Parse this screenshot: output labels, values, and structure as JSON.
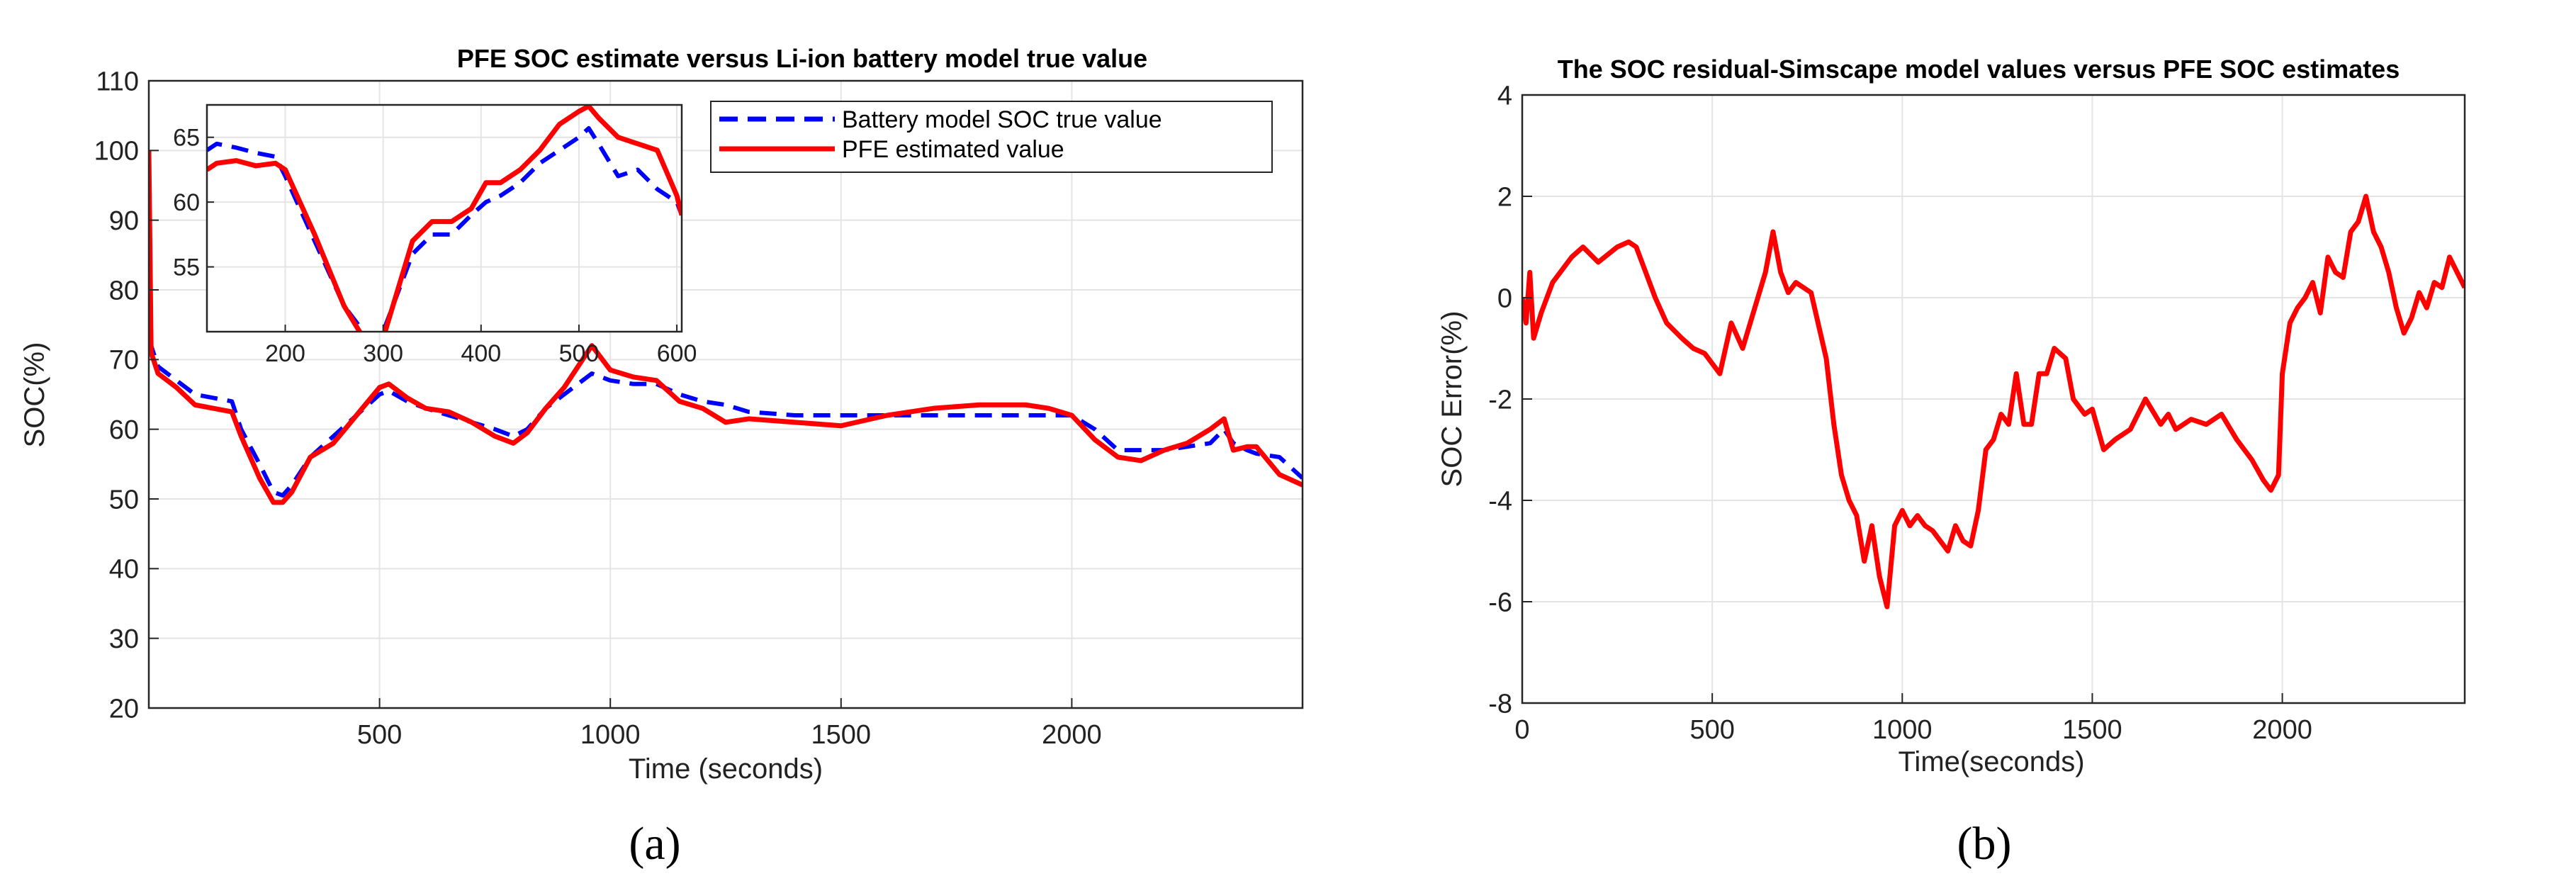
{
  "chart_data": [
    {
      "type": "line",
      "panel_label": "(a)",
      "title": "PFE SOC estimate versus Li-ion battery model true value",
      "xlabel": "Time (seconds)",
      "ylabel": "SOC(%)",
      "xlim": [
        0,
        2500
      ],
      "ylim": [
        20,
        110
      ],
      "xticks": [
        500,
        1000,
        1500,
        2000
      ],
      "yticks": [
        20,
        30,
        40,
        50,
        60,
        70,
        80,
        90,
        100,
        110
      ],
      "grid": true,
      "legend_position": "top-right",
      "series": [
        {
          "name": "Battery model SOC true value",
          "color": "#0000ff",
          "style": "dashed",
          "x": [
            0,
            5,
            20,
            60,
            100,
            140,
            180,
            200,
            240,
            270,
            290,
            310,
            350,
            400,
            450,
            500,
            520,
            560,
            600,
            650,
            700,
            750,
            790,
            820,
            860,
            900,
            940,
            960,
            1000,
            1050,
            1100,
            1150,
            1200,
            1250,
            1300,
            1400,
            1500,
            1600,
            1700,
            1800,
            1900,
            1950,
            2000,
            2050,
            2100,
            2150,
            2200,
            2250,
            2300,
            2330,
            2350,
            2380,
            2400,
            2450,
            2500
          ],
          "y": [
            100,
            72,
            69,
            67,
            65,
            64.5,
            64,
            60,
            55,
            51,
            50.5,
            52,
            56,
            59,
            62,
            65,
            65.5,
            64,
            63,
            62,
            61,
            60,
            59,
            60,
            63,
            65,
            67,
            68,
            67,
            66.5,
            66.5,
            65,
            64,
            63.5,
            62.5,
            62,
            62,
            62,
            62,
            62,
            62,
            62,
            62,
            60,
            57,
            57,
            57,
            57.5,
            58,
            60,
            58,
            57,
            56.5,
            56,
            53
          ]
        },
        {
          "name": "PFE estimated value",
          "color": "#ff0000",
          "style": "solid",
          "x": [
            0,
            5,
            20,
            60,
            100,
            140,
            180,
            200,
            240,
            270,
            290,
            310,
            350,
            400,
            450,
            500,
            520,
            560,
            600,
            650,
            700,
            750,
            790,
            820,
            860,
            900,
            940,
            960,
            1000,
            1050,
            1100,
            1150,
            1200,
            1250,
            1300,
            1400,
            1500,
            1600,
            1700,
            1800,
            1900,
            1950,
            2000,
            2050,
            2100,
            2150,
            2200,
            2250,
            2300,
            2330,
            2350,
            2380,
            2400,
            2450,
            2500
          ],
          "y": [
            100,
            71,
            68,
            66,
            63.5,
            63,
            62.5,
            59,
            53,
            49.5,
            49.5,
            51,
            56,
            58,
            62,
            66,
            66.5,
            64.5,
            63,
            62.5,
            61,
            59,
            58,
            59.5,
            63,
            66,
            70,
            72,
            68.5,
            67.5,
            67,
            64,
            63,
            61,
            61.5,
            61,
            60.5,
            62,
            63,
            63.5,
            63.5,
            63,
            62,
            58.5,
            56,
            55.5,
            57,
            58,
            60,
            61.5,
            57,
            57.5,
            57.5,
            53.5,
            52
          ]
        }
      ],
      "inset": {
        "xlim": [
          120,
          605
        ],
        "ylim": [
          50,
          67.5
        ],
        "xticks": [
          200,
          300,
          400,
          500,
          600
        ],
        "yticks": [
          55,
          60,
          65
        ],
        "series": [
          {
            "name": "Battery model SOC true value",
            "x": [
              120,
              130,
              150,
              170,
              190,
              200,
              230,
              260,
              285,
              300,
              310,
              330,
              350,
              370,
              390,
              405,
              420,
              440,
              460,
              480,
              500,
              510,
              520,
              540,
              560,
              580,
              600,
              605
            ],
            "y": [
              64,
              64.5,
              64.2,
              63.8,
              63.5,
              62,
              57,
              52,
              49.5,
              50,
              52,
              56,
              57.5,
              57.5,
              59,
              60,
              60.5,
              61.5,
              63,
              64,
              65,
              65.7,
              64.5,
              62,
              62.5,
              61,
              60,
              59
            ]
          },
          {
            "name": "PFE estimated value",
            "x": [
              120,
              130,
              150,
              170,
              190,
              200,
              230,
              260,
              280,
              300,
              310,
              330,
              350,
              370,
              390,
              405,
              420,
              440,
              460,
              480,
              500,
              510,
              520,
              540,
              560,
              580,
              600,
              605
            ],
            "y": [
              62.5,
              63,
              63.2,
              62.8,
              63,
              62.5,
              57.5,
              52,
              49.5,
              49.5,
              52,
              57,
              58.5,
              58.5,
              59.5,
              61.5,
              61.5,
              62.5,
              64,
              66,
              67,
              67.4,
              66.5,
              65,
              64.5,
              64,
              60.5,
              59
            ]
          }
        ]
      }
    },
    {
      "type": "line",
      "panel_label": "(b)",
      "title": "The SOC residual-Simscape model values versus PFE SOC estimates",
      "xlabel": "Time(seconds)",
      "ylabel": "SOC Error(%)",
      "xlim": [
        0,
        2480
      ],
      "ylim": [
        -8,
        4
      ],
      "xticks": [
        0,
        500,
        1000,
        1500,
        2000
      ],
      "yticks": [
        -8,
        -6,
        -4,
        -2,
        0,
        2,
        4
      ],
      "grid": true,
      "series": [
        {
          "name": "SOC residual",
          "color": "#ff0000",
          "style": "solid",
          "x": [
            0,
            10,
            20,
            30,
            50,
            80,
            100,
            130,
            160,
            200,
            250,
            280,
            300,
            350,
            380,
            420,
            450,
            480,
            500,
            520,
            550,
            580,
            600,
            620,
            640,
            660,
            680,
            700,
            720,
            760,
            800,
            820,
            840,
            860,
            880,
            900,
            920,
            940,
            960,
            980,
            1000,
            1020,
            1040,
            1060,
            1080,
            1100,
            1120,
            1140,
            1160,
            1180,
            1200,
            1220,
            1240,
            1260,
            1280,
            1300,
            1320,
            1340,
            1360,
            1380,
            1400,
            1430,
            1450,
            1480,
            1500,
            1530,
            1560,
            1600,
            1640,
            1680,
            1700,
            1720,
            1760,
            1800,
            1840,
            1880,
            1920,
            1950,
            1970,
            1990,
            2000,
            2020,
            2040,
            2060,
            2080,
            2100,
            2120,
            2140,
            2160,
            2180,
            2200,
            2220,
            2240,
            2260,
            2280,
            2300,
            2320,
            2340,
            2360,
            2380,
            2400,
            2420,
            2440,
            2460,
            2480
          ],
          "y": [
            0,
            -0.5,
            0.5,
            -0.8,
            -0.3,
            0.3,
            0.5,
            0.8,
            1,
            0.7,
            1,
            1.1,
            1,
            0,
            -0.5,
            -0.8,
            -1,
            -1.1,
            -1.3,
            -1.5,
            -0.5,
            -1,
            -0.5,
            0,
            0.5,
            1.3,
            0.5,
            0.1,
            0.3,
            0.1,
            -1.2,
            -2.5,
            -3.5,
            -4,
            -4.3,
            -5.2,
            -4.5,
            -5.5,
            -6.1,
            -4.5,
            -4.2,
            -4.5,
            -4.3,
            -4.5,
            -4.6,
            -4.8,
            -5,
            -4.5,
            -4.8,
            -4.9,
            -4.2,
            -3,
            -2.8,
            -2.3,
            -2.5,
            -1.5,
            -2.5,
            -2.5,
            -1.5,
            -1.5,
            -1,
            -1.2,
            -2,
            -2.3,
            -2.2,
            -3,
            -2.8,
            -2.6,
            -2,
            -2.5,
            -2.3,
            -2.6,
            -2.4,
            -2.5,
            -2.3,
            -2.8,
            -3.2,
            -3.6,
            -3.8,
            -3.5,
            -1.5,
            -0.5,
            -0.2,
            0,
            0.3,
            -0.3,
            0.8,
            0.5,
            0.4,
            1.3,
            1.5,
            2,
            1.3,
            1,
            0.5,
            -0.2,
            -0.7,
            -0.4,
            0.1,
            -0.2,
            0.3,
            0.2,
            0.8,
            0.5,
            0.2
          ]
        }
      ]
    }
  ]
}
